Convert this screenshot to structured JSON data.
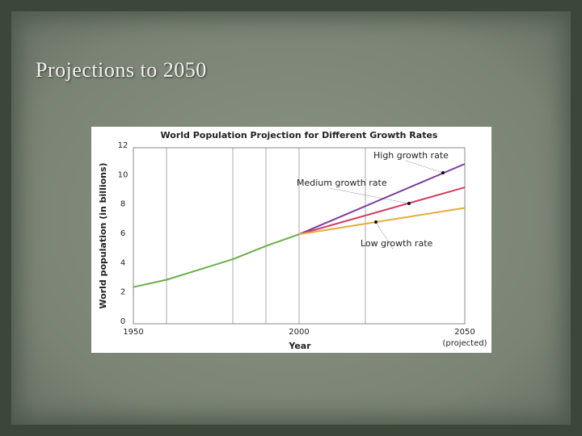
{
  "slide_title": "Projections to 2050",
  "chart_data": {
    "type": "line",
    "title": "World Population Projection for Different Growth Rates",
    "xlabel": "Year",
    "ylabel": "World population (in billions)",
    "x_note": "(projected)",
    "xlim": [
      1950,
      2050
    ],
    "ylim": [
      0,
      12
    ],
    "xticks": [
      1950,
      2000,
      2050
    ],
    "yticks": [
      0,
      2,
      4,
      6,
      8,
      10,
      12
    ],
    "xgrid": [
      1960,
      1980,
      1990,
      2000,
      2020
    ],
    "series": [
      {
        "color": "#6aae4a",
        "x": [
          1950,
          1960,
          1970,
          1980,
          1990,
          2000
        ],
        "values": [
          2.5,
          3.0,
          3.7,
          4.4,
          5.3,
          6.1
        ]
      },
      {
        "name": "High growth rate",
        "color": "#7b3f9e",
        "x": [
          2000,
          2050
        ],
        "values": [
          6.1,
          10.9
        ]
      },
      {
        "name": "Medium growth rate",
        "color": "#d33b5c",
        "x": [
          2000,
          2050
        ],
        "values": [
          6.1,
          9.3
        ]
      },
      {
        "name": "Low growth rate",
        "color": "#e6ac3e",
        "x": [
          2000,
          2050
        ],
        "values": [
          6.1,
          7.9
        ]
      }
    ]
  }
}
